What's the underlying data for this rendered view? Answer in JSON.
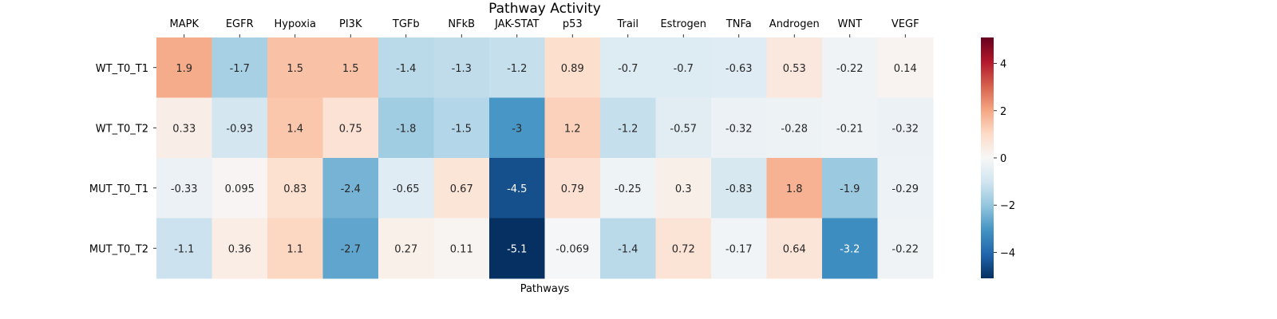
{
  "chart_data": {
    "type": "heatmap",
    "title": "Pathway Activity",
    "xlabel": "Pathways",
    "ylabel": "",
    "columns": [
      "MAPK",
      "EGFR",
      "Hypoxia",
      "PI3K",
      "TGFb",
      "NFkB",
      "JAK-STAT",
      "p53",
      "Trail",
      "Estrogen",
      "TNFa",
      "Androgen",
      "WNT",
      "VEGF"
    ],
    "rows": [
      "WT_T0_T1",
      "WT_T0_T2",
      "MUT_T0_T1",
      "MUT_T0_T2"
    ],
    "values": [
      [
        1.9,
        -1.7,
        1.5,
        1.5,
        -1.4,
        -1.3,
        -1.2,
        0.89,
        -0.7,
        -0.7,
        -0.63,
        0.53,
        -0.22,
        0.14
      ],
      [
        0.33,
        -0.93,
        1.4,
        0.75,
        -1.8,
        -1.5,
        -3,
        1.2,
        -1.2,
        -0.57,
        -0.32,
        -0.28,
        -0.21,
        -0.32
      ],
      [
        -0.33,
        0.095,
        0.83,
        -2.4,
        -0.65,
        0.67,
        -4.5,
        0.79,
        -0.25,
        0.3,
        -0.83,
        1.8,
        -1.9,
        -0.29
      ],
      [
        -1.1,
        0.36,
        1.1,
        -2.7,
        0.27,
        0.11,
        -5.1,
        -0.069,
        -1.4,
        0.72,
        -0.17,
        0.64,
        -3.2,
        -0.22
      ]
    ],
    "value_labels": [
      [
        "1.9",
        "-1.7",
        "1.5",
        "1.5",
        "-1.4",
        "-1.3",
        "-1.2",
        "0.89",
        "-0.7",
        "-0.7",
        "-0.63",
        "0.53",
        "-0.22",
        "0.14"
      ],
      [
        "0.33",
        "-0.93",
        "1.4",
        "0.75",
        "-1.8",
        "-1.5",
        "-3",
        "1.2",
        "-1.2",
        "-0.57",
        "-0.32",
        "-0.28",
        "-0.21",
        "-0.32"
      ],
      [
        "-0.33",
        "0.095",
        "0.83",
        "-2.4",
        "-0.65",
        "0.67",
        "-4.5",
        "0.79",
        "-0.25",
        "0.3",
        "-0.83",
        "1.8",
        "-1.9",
        "-0.29"
      ],
      [
        "-1.1",
        "0.36",
        "1.1",
        "-2.7",
        "0.27",
        "0.11",
        "-5.1",
        "-0.069",
        "-1.4",
        "0.72",
        "-0.17",
        "0.64",
        "-3.2",
        "-0.22"
      ]
    ],
    "colormap": "RdBu_r",
    "vmin": -5.1,
    "vmax": 5.1,
    "colorbar_ticks": [
      4,
      2,
      0,
      -2,
      -4
    ],
    "colorbar_tick_labels": [
      "4",
      "2",
      "0",
      "−2",
      "−4"
    ],
    "x_ticks_position": "top",
    "grid": false,
    "legend": "colorbar-right"
  }
}
